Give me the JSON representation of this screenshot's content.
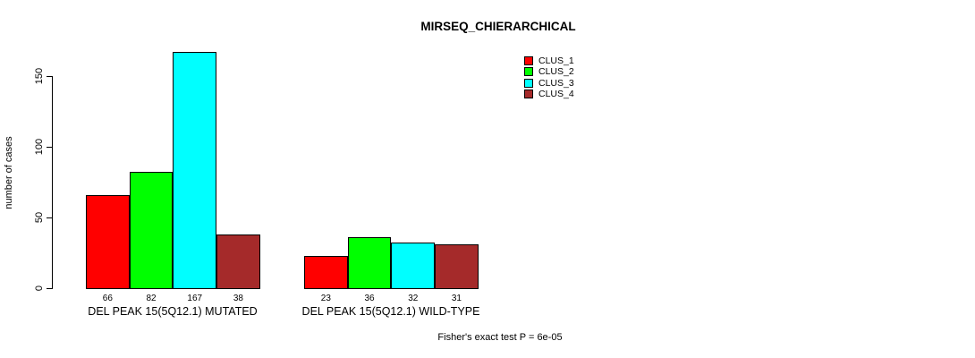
{
  "chart_data": {
    "type": "bar",
    "title": "MIRSEQ_CHIERARCHICAL",
    "xlabel": "",
    "ylabel": "number of cases",
    "ylim": [
      0,
      150
    ],
    "yticks": [
      0,
      50,
      100,
      150
    ],
    "grid": false,
    "legend_position": "top-right",
    "categories": [
      "DEL PEAK 15(5Q12.1) MUTATED",
      "DEL PEAK 15(5Q12.1) WILD-TYPE"
    ],
    "series": [
      {
        "name": "CLUS_1",
        "color": "#FF0000",
        "values": [
          66,
          23
        ]
      },
      {
        "name": "CLUS_2",
        "color": "#00FF00",
        "values": [
          82,
          36
        ]
      },
      {
        "name": "CLUS_3",
        "color": "#00FFFF",
        "values": [
          167,
          32
        ]
      },
      {
        "name": "CLUS_4",
        "color": "#A52A2A",
        "values": [
          38,
          31
        ]
      }
    ],
    "bar_value_labels": [
      [
        66,
        82,
        167,
        38
      ],
      [
        23,
        36,
        32,
        31
      ]
    ],
    "annotation": "Fisher's exact test P = 6e-05"
  }
}
